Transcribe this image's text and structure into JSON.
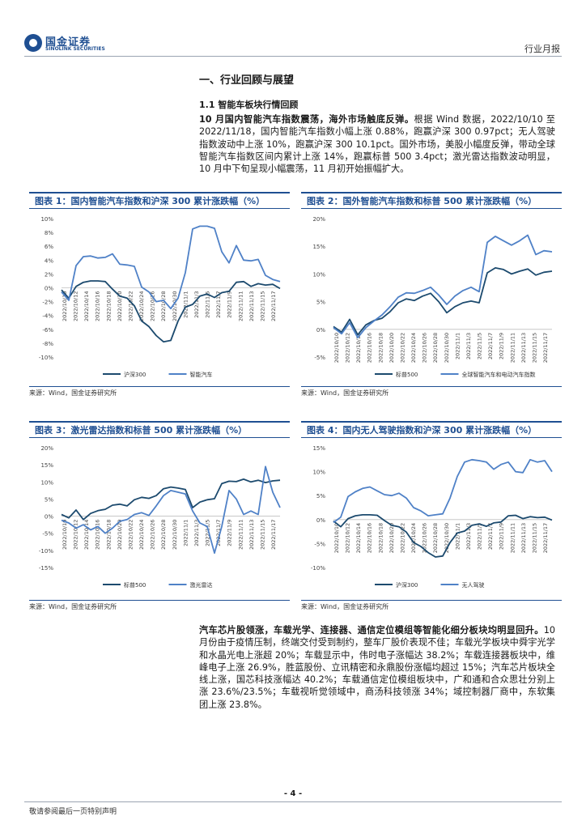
{
  "header": {
    "logo_cn": "国金证券",
    "logo_en": "SINOLINK SECURITIES",
    "report_type": "行业月报"
  },
  "section": {
    "title": "一、行业回顾与展望",
    "subtitle": "1.1 智能车板块行情回顾"
  },
  "para1": {
    "bold": "10 月国内智能汽车指数震荡，海外市场触底反弹。",
    "text": "根据 Wind 数据，2022/10/10 至 2022/11/18，国内智能汽车指数小幅上涨 0.88%，跑赢沪深 300 0.97pct；无人驾驶指数波动中上涨 10%，跑赢沪深 300 10.1pct。国外市场，美股小幅度反弹，带动全球智能汽车指数区间内累计上涨 14%，跑赢标普 500 3.4pct；激光雷达指数波动明显，10 月中下旬呈现小幅震荡，11 月初开始振幅扩大。"
  },
  "para2": {
    "bold": "汽车芯片股领涨，车载光学、连接器、通信定位模组等智能化细分板块均明显回升。",
    "text": "10 月份由于疫情压制，终端交付受到制约，整车厂股价表现不佳；车载光学板块中舜宇光学和水晶光电上涨超 20%；车载显示中，伟时电子涨幅达 38.2%；车载连接器板块中，维峰电子上涨 26.9%，胜蓝股份、立讯精密和永鼎股份涨幅均超过 15%；汽车芯片板块全线上涨，国芯科技涨幅达 40.2%；车载通信定位模组板块中，广和通和合众思壮分别上涨 23.6%/23.5%；车载视听觉领域中，商汤科技领涨 34%；域控制器厂商中，东软集团上涨 23.8%。"
  },
  "figures": [
    {
      "title": "图表 1：国内智能汽车指数和沪深 300 累计涨跌幅（%）",
      "source": "来源：Wind，国金证券研究所"
    },
    {
      "title": "图表 2：国外智能汽车指数和标普 500 累计涨跌幅（%）",
      "source": "来源：Wind，国金证券研究所"
    },
    {
      "title": "图表 3：激光雷达指数和标普 500 累计涨跌幅（%）",
      "source": "来源：Wind，国金证券研究所"
    },
    {
      "title": "图表 4：国内无人驾驶指数和沪深 300 累计涨跌幅（%）",
      "source": "来源：Wind，国金证券研究所"
    }
  ],
  "chart_data": [
    {
      "type": "line",
      "ylim": [
        -10,
        10
      ],
      "yticks": [
        -10,
        -8,
        -6,
        -4,
        -2,
        0,
        2,
        4,
        6,
        8,
        10
      ],
      "ytick_labels": [
        "-10%",
        "-8%",
        "-6%",
        "-4%",
        "-2%",
        "0%",
        "2%",
        "4%",
        "6%",
        "8%",
        "10%"
      ],
      "xtick_labels": [
        "2022/10/10",
        "2022/10/12",
        "2022/10/14",
        "2022/10/16",
        "2022/10/18",
        "2022/10/20",
        "2022/10/22",
        "2022/10/24",
        "2022/10/26",
        "2022/10/28",
        "2022/10/30",
        "2022/11/1",
        "2022/11/3",
        "2022/11/5",
        "2022/11/7",
        "2022/11/9",
        "2022/11/11",
        "2022/11/13",
        "2022/11/15",
        "2022/11/17"
      ],
      "series": [
        {
          "name": "沪深300",
          "color": "#1c4a6e",
          "values": [
            -0.3,
            -1.5,
            0.2,
            0.8,
            1.0,
            1.0,
            0.9,
            -0.2,
            -1.2,
            -1.5,
            -2.6,
            -4.8,
            -5.6,
            -6.9,
            -7.8,
            -7.6,
            -4.8,
            -2.8,
            -2.4,
            -1.2,
            -0.9,
            -1.4,
            -0.7,
            -0.5,
            0.8,
            0.9,
            0.2,
            0.6,
            0.4,
            0.5,
            -0.1
          ]
        },
        {
          "name": "智能汽车",
          "color": "#4f81c7",
          "values": [
            -0.6,
            -1.8,
            3.2,
            4.5,
            4.6,
            4.3,
            4.4,
            4.9,
            3.4,
            3.3,
            3.1,
            0.1,
            -0.6,
            -2.0,
            -1.8,
            -3.0,
            -1.5,
            2.2,
            8.5,
            8.9,
            8.9,
            8.6,
            5.2,
            3.6,
            6.1,
            4.0,
            3.9,
            4.1,
            1.8,
            1.2,
            0.9
          ]
        }
      ]
    },
    {
      "type": "line",
      "ylim": [
        -5,
        20
      ],
      "yticks": [
        -5,
        0,
        5,
        10,
        15,
        20
      ],
      "ytick_labels": [
        "-5%",
        "0%",
        "5%",
        "10%",
        "15%",
        "20%"
      ],
      "xtick_labels": [
        "2022/10/10",
        "2022/10/12",
        "2022/10/14",
        "2022/10/16",
        "2022/10/18",
        "2022/10/20",
        "2022/10/22",
        "2022/10/24",
        "2022/10/26",
        "2022/10/28",
        "2022/10/30",
        "2022/11/1",
        "2022/11/3",
        "2022/11/5",
        "2022/11/7",
        "2022/11/9",
        "2022/11/11",
        "2022/11/13",
        "2022/11/15",
        "2022/11/17"
      ],
      "series": [
        {
          "name": "标普500",
          "color": "#1c4a6e",
          "values": [
            0.5,
            -0.5,
            1.8,
            -1.0,
            0.8,
            1.6,
            2.0,
            3.2,
            4.8,
            5.5,
            5.2,
            6.0,
            6.5,
            5.0,
            3.0,
            4.1,
            4.8,
            5.1,
            4.8,
            10.2,
            11.1,
            10.8,
            10.0,
            10.5,
            10.9,
            9.8,
            10.3,
            10.5
          ]
        },
        {
          "name": "全球智能汽车和电动汽车指数",
          "color": "#4f81c7",
          "values": [
            0.3,
            -0.8,
            1.2,
            -1.5,
            0.3,
            1.5,
            2.6,
            4.1,
            5.8,
            6.6,
            6.5,
            7.0,
            7.6,
            6.2,
            4.5,
            6.0,
            7.0,
            7.6,
            6.8,
            15.7,
            16.8,
            16.0,
            15.2,
            16.0,
            17.0,
            13.5,
            14.2,
            14.0
          ]
        }
      ]
    },
    {
      "type": "line",
      "ylim": [
        -15,
        20
      ],
      "yticks": [
        -15,
        -10,
        -5,
        0,
        5,
        10,
        15,
        20
      ],
      "ytick_labels": [
        "-15%",
        "-10%",
        "-5%",
        "0%",
        "5%",
        "10%",
        "15%",
        "20%"
      ],
      "xtick_labels": [
        "2022/10/10",
        "2022/10/12",
        "2022/10/14",
        "2022/10/16",
        "2022/10/18",
        "2022/10/20",
        "2022/10/22",
        "2022/10/24",
        "2022/10/26",
        "2022/10/28",
        "2022/10/30",
        "2022/11/1",
        "2022/11/3",
        "2022/11/5",
        "2022/11/7",
        "2022/11/9",
        "2022/11/11",
        "2022/11/13",
        "2022/11/15",
        "2022/11/17"
      ],
      "series": [
        {
          "name": "标普500",
          "color": "#1c4a6e",
          "values": [
            0.5,
            -0.5,
            1.8,
            -1.0,
            0.8,
            1.6,
            2.0,
            3.2,
            3.5,
            3.0,
            4.8,
            5.5,
            5.2,
            6.0,
            8.0,
            8.5,
            8.2,
            7.8,
            2.5,
            4.1,
            4.8,
            5.1,
            9.5,
            10.2,
            10.1,
            10.8,
            10.0,
            10.5,
            9.8,
            10.3,
            10.5
          ]
        },
        {
          "name": "激光雷达",
          "color": "#4f81c7",
          "values": [
            -1.2,
            -2.0,
            -3.5,
            -2.5,
            -4.0,
            -3.0,
            -5.0,
            -3.5,
            -1.5,
            -1.0,
            0.5,
            1.0,
            0.2,
            3.0,
            6.0,
            7.5,
            7.0,
            6.5,
            1.5,
            -2.0,
            -3.0,
            -10.8,
            -3.0,
            7.5,
            5.0,
            0.5,
            1.5,
            0.5,
            14.5,
            7.0,
            2.5
          ]
        }
      ]
    },
    {
      "type": "line",
      "ylim": [
        -10,
        15
      ],
      "yticks": [
        -10,
        -5,
        0,
        5,
        10,
        15
      ],
      "ytick_labels": [
        "-10%",
        "-5%",
        "0%",
        "5%",
        "10%",
        "15%"
      ],
      "xtick_labels": [
        "2022/10/10",
        "2022/10/12",
        "2022/10/14",
        "2022/10/16",
        "2022/10/18",
        "2022/10/20",
        "2022/10/22",
        "2022/10/24",
        "2022/10/26",
        "2022/10/28",
        "2022/10/30",
        "2022/11/1",
        "2022/11/3",
        "2022/11/5",
        "2022/11/7",
        "2022/11/9",
        "2022/11/11",
        "2022/11/13",
        "2022/11/15",
        "2022/11/17"
      ],
      "series": [
        {
          "name": "沪深300",
          "color": "#1c4a6e",
          "values": [
            -0.3,
            -1.5,
            0.2,
            0.8,
            1.0,
            1.0,
            0.9,
            -0.2,
            -1.2,
            -1.5,
            -2.6,
            -4.8,
            -5.6,
            -6.9,
            -7.8,
            -7.6,
            -4.8,
            -2.8,
            -2.4,
            -1.2,
            -0.9,
            -1.4,
            -0.7,
            -0.5,
            0.8,
            0.9,
            0.2,
            0.6,
            0.4,
            0.5,
            -0.1
          ]
        },
        {
          "name": "无人驾驶",
          "color": "#4f81c7",
          "values": [
            -0.6,
            0.5,
            4.8,
            5.8,
            6.5,
            6.8,
            6.0,
            5.2,
            5.0,
            5.5,
            4.5,
            2.5,
            1.8,
            0.8,
            1.0,
            1.2,
            4.5,
            9.0,
            12.0,
            12.5,
            12.3,
            12.0,
            10.5,
            11.5,
            12.0,
            10.0,
            9.8,
            12.5,
            12.0,
            12.3,
            10.0
          ]
        }
      ]
    }
  ]
}
